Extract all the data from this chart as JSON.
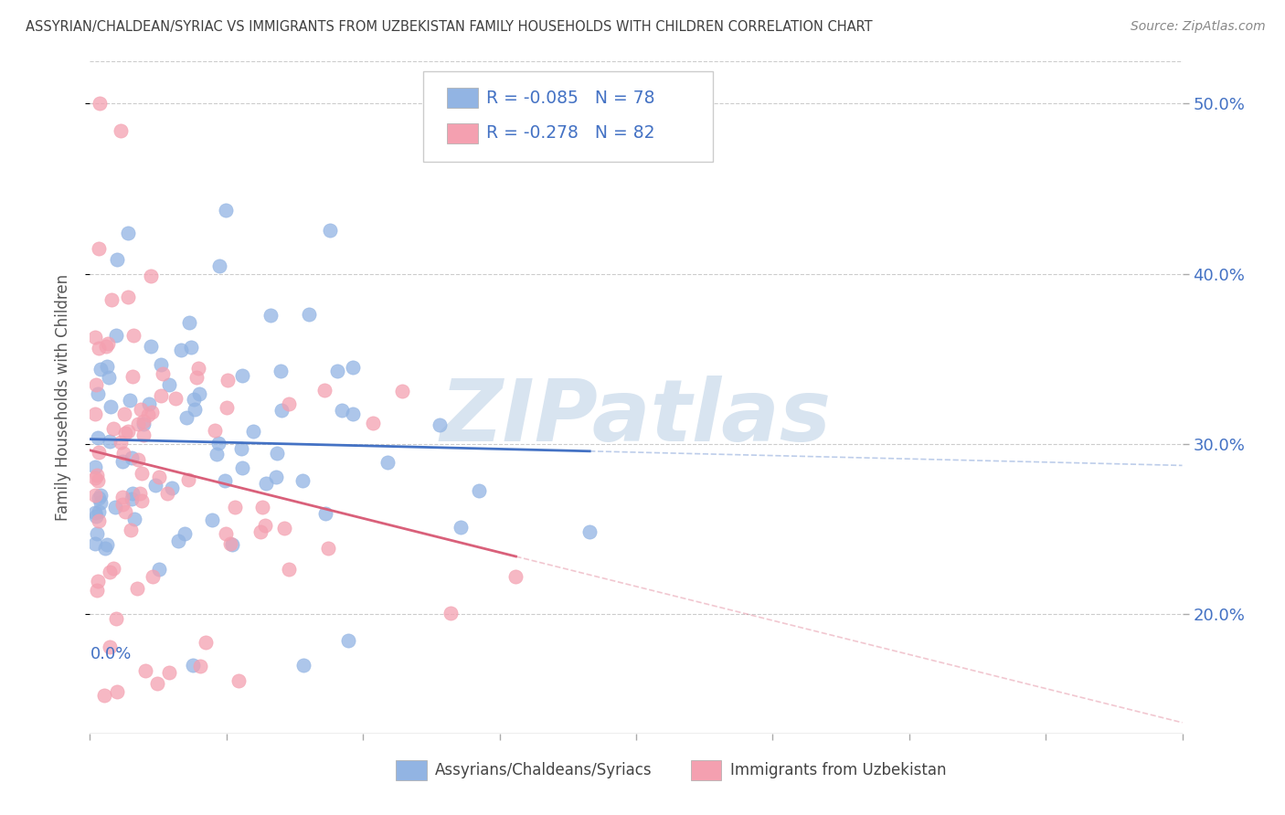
{
  "title": "ASSYRIAN/CHALDEAN/SYRIAC VS IMMIGRANTS FROM UZBEKISTAN FAMILY HOUSEHOLDS WITH CHILDREN CORRELATION CHART",
  "source": "Source: ZipAtlas.com",
  "legend_label1": "Assyrians/Chaldeans/Syriacs",
  "legend_label2": "Immigrants from Uzbekistan",
  "ylabel": "Family Households with Children",
  "yticks": [
    "20.0%",
    "30.0%",
    "40.0%",
    "50.0%"
  ],
  "ytick_values": [
    0.2,
    0.3,
    0.4,
    0.5
  ],
  "xlim": [
    0.0,
    0.2
  ],
  "ylim": [
    0.13,
    0.525
  ],
  "R1": -0.085,
  "N1": 78,
  "R2": -0.278,
  "N2": 82,
  "color1": "#92b4e3",
  "color2": "#f4a0b0",
  "line_color1": "#4472c4",
  "line_color2": "#d9607a",
  "watermark": "ZIPatlas",
  "background_color": "#ffffff",
  "title_color": "#404040",
  "grid_color": "#cccccc"
}
